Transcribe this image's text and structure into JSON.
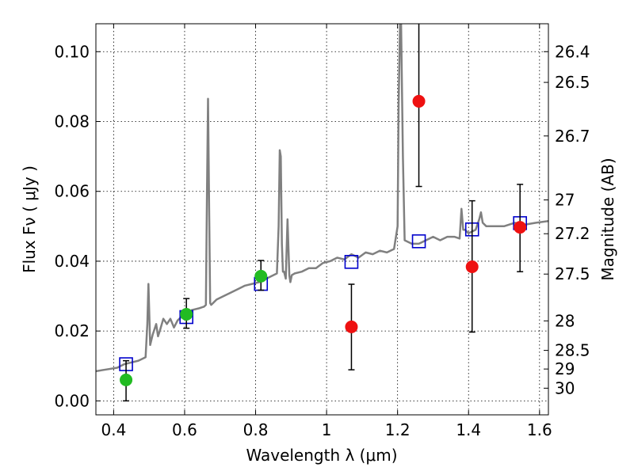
{
  "chart_data": {
    "type": "scatter",
    "title": "",
    "xlabel": "Wavelength  λ (μm)",
    "ylabel": "Flux  Fν  ( μJy )",
    "y2label": "Magnitude (AB)",
    "xlim": [
      0.35,
      1.625
    ],
    "ylim": [
      -0.004,
      0.108
    ],
    "grid": true,
    "x_ticks": [
      0.4,
      0.6,
      0.8,
      1.0,
      1.2,
      1.4,
      1.6
    ],
    "x_tick_labels": [
      "0.4",
      "0.6",
      "0.8",
      "1",
      "1.2",
      "1.4",
      "1.6"
    ],
    "y_ticks": [
      0.0,
      0.02,
      0.04,
      0.06,
      0.08,
      0.1
    ],
    "y_tick_labels": [
      "0.00",
      "0.02",
      "0.04",
      "0.06",
      "0.08",
      "0.10"
    ],
    "magnitude_ticks": [
      26.4,
      26.5,
      26.7,
      27.0,
      27.2,
      27.5,
      28.0,
      28.5,
      29.0,
      30.0
    ],
    "magnitude_tick_labels": [
      "26.4",
      "26.5",
      "26.7",
      "27",
      "27.2",
      "27.5",
      "28",
      "28.5",
      "29",
      "30"
    ],
    "series": [
      {
        "kind": "line",
        "color": "#808080",
        "x": [
          0.35,
          0.38,
          0.41,
          0.43,
          0.45,
          0.47,
          0.49,
          0.495,
          0.498,
          0.503,
          0.51,
          0.52,
          0.525,
          0.53,
          0.54,
          0.55,
          0.56,
          0.57,
          0.58,
          0.59,
          0.6,
          0.62,
          0.64,
          0.655,
          0.66,
          0.663,
          0.666,
          0.669,
          0.672,
          0.675,
          0.69,
          0.71,
          0.73,
          0.75,
          0.77,
          0.79,
          0.81,
          0.83,
          0.85,
          0.86,
          0.865,
          0.868,
          0.871,
          0.874,
          0.877,
          0.88,
          0.885,
          0.89,
          0.895,
          0.898,
          0.902,
          0.91,
          0.93,
          0.95,
          0.97,
          0.99,
          1.01,
          1.03,
          1.05,
          1.07,
          1.09,
          1.11,
          1.13,
          1.15,
          1.17,
          1.19,
          1.2,
          1.203,
          1.207,
          1.21,
          1.215,
          1.22,
          1.24,
          1.26,
          1.28,
          1.3,
          1.32,
          1.34,
          1.36,
          1.375,
          1.38,
          1.385,
          1.39,
          1.4,
          1.42,
          1.43,
          1.435,
          1.44,
          1.45,
          1.47,
          1.5,
          1.53,
          1.56,
          1.59,
          1.625
        ],
        "y": [
          0.0085,
          0.009,
          0.0095,
          0.0105,
          0.011,
          0.0115,
          0.0125,
          0.022,
          0.0335,
          0.016,
          0.019,
          0.022,
          0.0185,
          0.02,
          0.0235,
          0.022,
          0.0235,
          0.021,
          0.023,
          0.024,
          0.0235,
          0.026,
          0.0265,
          0.027,
          0.0275,
          0.06,
          0.0865,
          0.055,
          0.028,
          0.0275,
          0.029,
          0.03,
          0.031,
          0.032,
          0.033,
          0.0335,
          0.034,
          0.035,
          0.036,
          0.0365,
          0.05,
          0.0718,
          0.07,
          0.045,
          0.037,
          0.037,
          0.035,
          0.052,
          0.036,
          0.034,
          0.036,
          0.0365,
          0.037,
          0.038,
          0.038,
          0.0395,
          0.04,
          0.041,
          0.0405,
          0.042,
          0.041,
          0.0425,
          0.042,
          0.043,
          0.0425,
          0.0435,
          0.05,
          0.085,
          0.108,
          0.108,
          0.07,
          0.046,
          0.045,
          0.045,
          0.046,
          0.047,
          0.046,
          0.047,
          0.047,
          0.0465,
          0.055,
          0.049,
          0.049,
          0.048,
          0.049,
          0.052,
          0.054,
          0.051,
          0.05,
          0.05,
          0.05,
          0.051,
          0.0505,
          0.051,
          0.0515
        ]
      },
      {
        "kind": "squares",
        "color": "#0000cc",
        "x": [
          0.435,
          0.605,
          0.815,
          1.07,
          1.26,
          1.41,
          1.545
        ],
        "y": [
          0.0105,
          0.024,
          0.0335,
          0.0398,
          0.0457,
          0.0491,
          0.0509
        ]
      },
      {
        "kind": "points",
        "color": "#22bb22",
        "x": [
          0.435,
          0.605,
          0.815
        ],
        "y": [
          0.006,
          0.0248,
          0.0357
        ],
        "yerr_low": [
          0.006,
          0.004,
          0.004
        ],
        "yerr_high": [
          0.0055,
          0.0045,
          0.0045
        ]
      },
      {
        "kind": "points",
        "color": "#ee1111",
        "x": [
          1.07,
          1.26,
          1.41,
          1.545
        ],
        "y": [
          0.0212,
          0.0858,
          0.0384,
          0.0497
        ],
        "yerr_low": [
          0.0123,
          0.0244,
          0.0187,
          0.0127
        ],
        "yerr_high": [
          0.0122,
          0.0242,
          0.0189,
          0.0123
        ]
      }
    ]
  }
}
